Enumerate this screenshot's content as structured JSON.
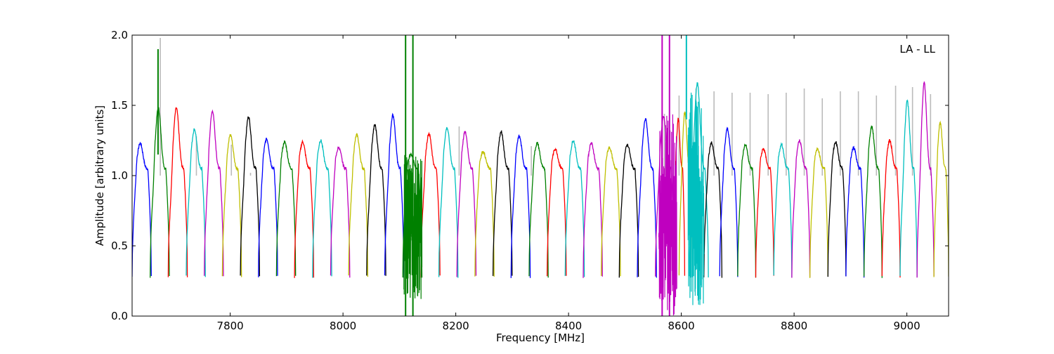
{
  "chart_data": {
    "type": "line",
    "title": "",
    "annotation": "LA - LL",
    "xlabel": "Frequency [MHz]",
    "ylabel": "Amplitude [arbitrary units]",
    "xlim": [
      7626,
      9074
    ],
    "ylim": [
      0,
      2
    ],
    "x_ticks": [
      7800,
      8000,
      8200,
      8400,
      8600,
      8800,
      9000
    ],
    "x_tick_labels": [
      "7800",
      "8000",
      "8200",
      "8400",
      "8600",
      "8800",
      "9000"
    ],
    "y_ticks": [
      0,
      0.5,
      1,
      1.5,
      2
    ],
    "y_tick_labels": [
      "0.0",
      "0.5",
      "1.0",
      "1.5",
      "2.0"
    ],
    "grid": false,
    "legend": "none",
    "colors": {
      "blue": "#0000ff",
      "green": "#008000",
      "red": "#ff0000",
      "cyan": "#00bfbf",
      "magenta": "#bf00bf",
      "olive": "#bfbf00",
      "black": "#000000",
      "grey": "#bbbbbb"
    },
    "channel_width_mhz": 32.5,
    "series": [
      {
        "color": "blue",
        "x_start": 7626,
        "x_end": 7660,
        "peak": 1.23
      },
      {
        "color": "green",
        "x_start": 7658,
        "x_end": 7692,
        "peak": 1.48
      },
      {
        "color": "red",
        "x_start": 7690,
        "x_end": 7724,
        "peak": 1.48
      },
      {
        "color": "cyan",
        "x_start": 7722,
        "x_end": 7756,
        "peak": 1.33
      },
      {
        "color": "magenta",
        "x_start": 7754,
        "x_end": 7788,
        "peak": 1.46
      },
      {
        "color": "olive",
        "x_start": 7786,
        "x_end": 7820,
        "peak": 1.29
      },
      {
        "color": "black",
        "x_start": 7818,
        "x_end": 7852,
        "peak": 1.42
      },
      {
        "color": "blue",
        "x_start": 7850,
        "x_end": 7884,
        "peak": 1.26
      },
      {
        "color": "green",
        "x_start": 7882,
        "x_end": 7916,
        "peak": 1.24
      },
      {
        "color": "red",
        "x_start": 7914,
        "x_end": 7948,
        "peak": 1.24
      },
      {
        "color": "cyan",
        "x_start": 7946,
        "x_end": 7980,
        "peak": 1.25
      },
      {
        "color": "magenta",
        "x_start": 7978,
        "x_end": 8012,
        "peak": 1.2
      },
      {
        "color": "olive",
        "x_start": 8010,
        "x_end": 8044,
        "peak": 1.29
      },
      {
        "color": "black",
        "x_start": 8042,
        "x_end": 8076,
        "peak": 1.36
      },
      {
        "color": "blue",
        "x_start": 8074,
        "x_end": 8108,
        "peak": 1.43
      },
      {
        "color": "green",
        "x_start": 8106,
        "x_end": 8140,
        "peak": 1.15
      },
      {
        "color": "red",
        "x_start": 8138,
        "x_end": 8172,
        "peak": 1.3
      },
      {
        "color": "cyan",
        "x_start": 8170,
        "x_end": 8204,
        "peak": 1.34
      },
      {
        "color": "magenta",
        "x_start": 8202,
        "x_end": 8236,
        "peak": 1.31
      },
      {
        "color": "olive",
        "x_start": 8234,
        "x_end": 8268,
        "peak": 1.17
      },
      {
        "color": "black",
        "x_start": 8266,
        "x_end": 8300,
        "peak": 1.31
      },
      {
        "color": "blue",
        "x_start": 8298,
        "x_end": 8332,
        "peak": 1.28
      },
      {
        "color": "green",
        "x_start": 8330,
        "x_end": 8364,
        "peak": 1.23
      },
      {
        "color": "red",
        "x_start": 8362,
        "x_end": 8396,
        "peak": 1.19
      },
      {
        "color": "cyan",
        "x_start": 8394,
        "x_end": 8428,
        "peak": 1.25
      },
      {
        "color": "magenta",
        "x_start": 8426,
        "x_end": 8460,
        "peak": 1.23
      },
      {
        "color": "olive",
        "x_start": 8458,
        "x_end": 8492,
        "peak": 1.2
      },
      {
        "color": "black",
        "x_start": 8490,
        "x_end": 8524,
        "peak": 1.22
      },
      {
        "color": "blue",
        "x_start": 8522,
        "x_end": 8556,
        "peak": 1.4
      },
      {
        "color": "magenta",
        "x_start": 8554,
        "x_end": 8588,
        "peak": 1.42
      },
      {
        "color": "red",
        "x_start": 8586,
        "x_end": 8606,
        "peak": 1.4
      },
      {
        "color": "olive",
        "x_start": 8596,
        "x_end": 8620,
        "peak": 1.45
      },
      {
        "color": "cyan",
        "x_start": 8614,
        "x_end": 8648,
        "peak": 1.66
      },
      {
        "color": "black",
        "x_start": 8640,
        "x_end": 8672,
        "peak": 1.23
      },
      {
        "color": "blue",
        "x_start": 8668,
        "x_end": 8700,
        "peak": 1.33
      },
      {
        "color": "green",
        "x_start": 8700,
        "x_end": 8732,
        "peak": 1.22
      },
      {
        "color": "red",
        "x_start": 8732,
        "x_end": 8764,
        "peak": 1.19
      },
      {
        "color": "cyan",
        "x_start": 8764,
        "x_end": 8796,
        "peak": 1.22
      },
      {
        "color": "magenta",
        "x_start": 8796,
        "x_end": 8828,
        "peak": 1.25
      },
      {
        "color": "olive",
        "x_start": 8828,
        "x_end": 8860,
        "peak": 1.19
      },
      {
        "color": "black",
        "x_start": 8860,
        "x_end": 8892,
        "peak": 1.24
      },
      {
        "color": "blue",
        "x_start": 8892,
        "x_end": 8924,
        "peak": 1.2
      },
      {
        "color": "green",
        "x_start": 8924,
        "x_end": 8956,
        "peak": 1.35
      },
      {
        "color": "red",
        "x_start": 8956,
        "x_end": 8988,
        "peak": 1.25
      },
      {
        "color": "cyan",
        "x_start": 8988,
        "x_end": 9018,
        "peak": 1.53
      },
      {
        "color": "magenta",
        "x_start": 9018,
        "x_end": 9048,
        "peak": 1.66
      },
      {
        "color": "olive",
        "x_start": 9048,
        "x_end": 9074,
        "peak": 1.38
      }
    ],
    "spikes": [
      {
        "color": "green",
        "x": 7672,
        "y0": 1.15,
        "y1": 1.9
      },
      {
        "color": "green",
        "x": 8111,
        "y0": 0.0,
        "y1": 2.0
      },
      {
        "color": "green",
        "x": 8124,
        "y0": 0.0,
        "y1": 2.0
      },
      {
        "color": "magenta",
        "x": 8566,
        "y0": 0.0,
        "y1": 2.0
      },
      {
        "color": "magenta",
        "x": 8579,
        "y0": 0.0,
        "y1": 2.0
      },
      {
        "color": "cyan",
        "x": 8609,
        "y0": 1.4,
        "y1": 2.0
      }
    ],
    "noisy_regions": [
      {
        "color": "green",
        "x_start": 8108,
        "x_end": 8140,
        "min": 0.12,
        "max": 1.15
      },
      {
        "color": "magenta",
        "x_start": 8560,
        "x_end": 8592,
        "min": 0.0,
        "max": 1.45
      },
      {
        "color": "cyan",
        "x_start": 8612,
        "x_end": 8640,
        "min": 0.07,
        "max": 1.66
      }
    ],
    "grey_markers": [
      {
        "x": 7676,
        "y": 1.98
      },
      {
        "x": 7740,
        "y": 1.28
      },
      {
        "x": 7802,
        "y": 1.22
      },
      {
        "x": 7836,
        "y": 1.02
      },
      {
        "x": 8206,
        "y": 1.35
      },
      {
        "x": 8334,
        "y": 1.21
      },
      {
        "x": 8570,
        "y": 1.44
      },
      {
        "x": 8596,
        "y": 1.57
      },
      {
        "x": 8626,
        "y": 1.62
      },
      {
        "x": 8658,
        "y": 1.6
      },
      {
        "x": 8690,
        "y": 1.59
      },
      {
        "x": 8722,
        "y": 1.59
      },
      {
        "x": 8754,
        "y": 1.58
      },
      {
        "x": 8786,
        "y": 1.59
      },
      {
        "x": 8818,
        "y": 1.62
      },
      {
        "x": 8850,
        "y": 1.55
      },
      {
        "x": 8882,
        "y": 1.6
      },
      {
        "x": 8914,
        "y": 1.6
      },
      {
        "x": 8946,
        "y": 1.57
      },
      {
        "x": 8980,
        "y": 1.64
      },
      {
        "x": 9010,
        "y": 1.63
      },
      {
        "x": 9042,
        "y": 1.58
      }
    ]
  }
}
